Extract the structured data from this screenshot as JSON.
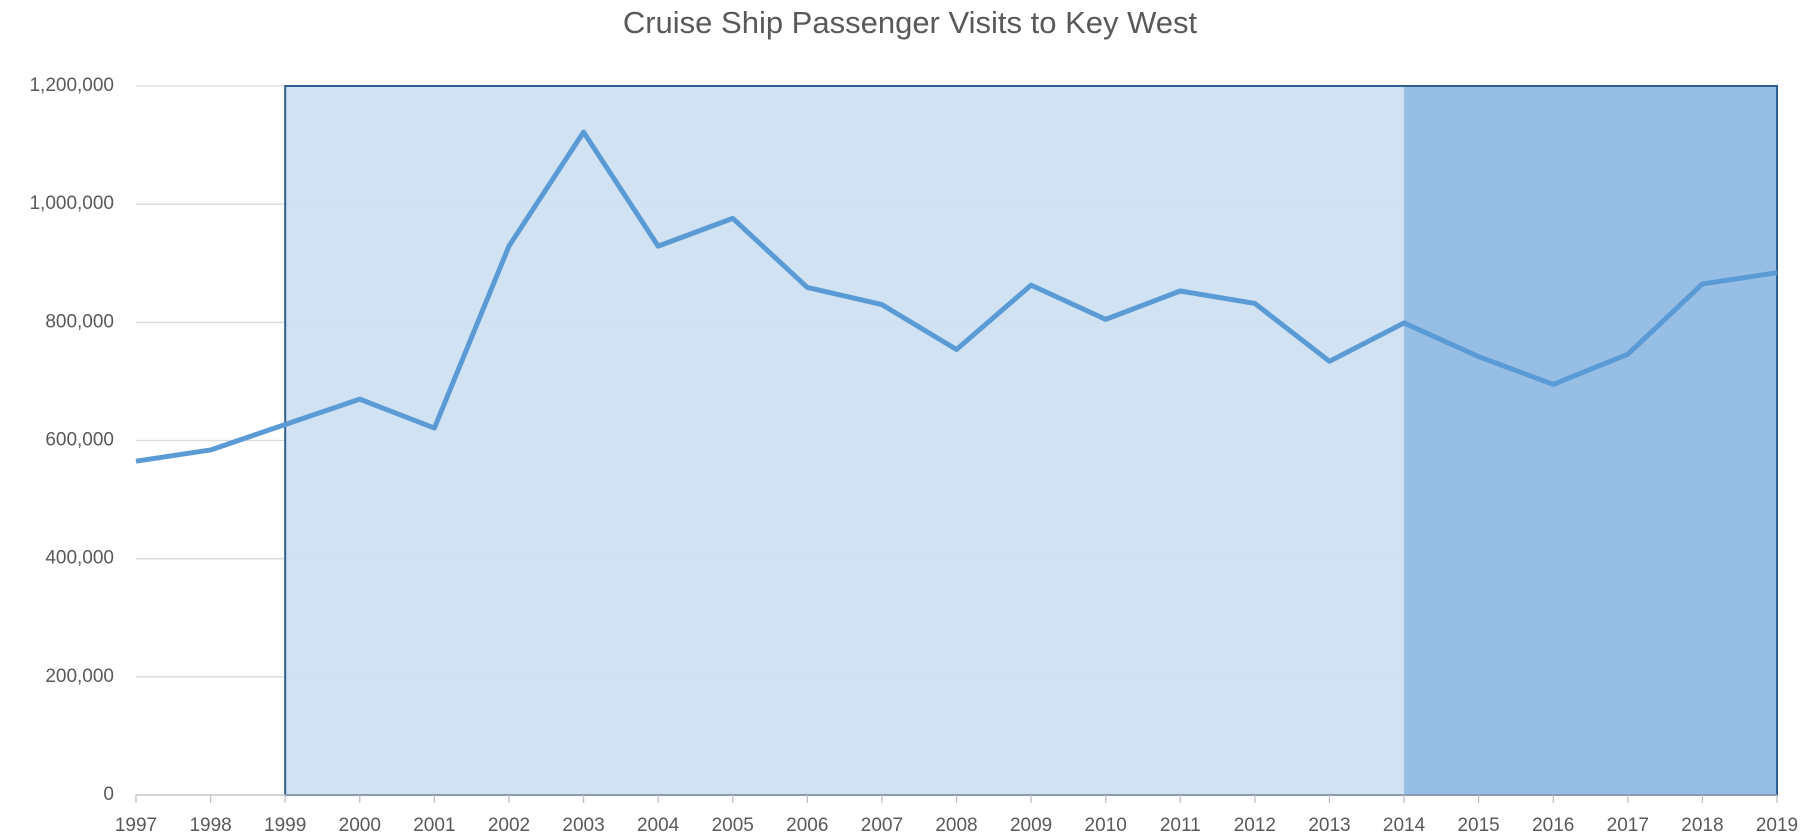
{
  "chart_data": {
    "type": "line",
    "title": "Cruise Ship Passenger Visits to Key West",
    "categories": [
      "1997",
      "1998",
      "1999",
      "2000",
      "2001",
      "2002",
      "2003",
      "2004",
      "2005",
      "2006",
      "2007",
      "2008",
      "2009",
      "2010",
      "2011",
      "2012",
      "2013",
      "2014",
      "2015",
      "2016",
      "2017",
      "2018",
      "2019"
    ],
    "series": [
      {
        "name": "Cruise Ship Passenger Visits",
        "color": "#5b9bd5",
        "values": [
          565000,
          584000,
          627000,
          670000,
          621000,
          929000,
          1122000,
          929000,
          976000,
          859000,
          830000,
          754000,
          863000,
          805000,
          853000,
          832000,
          734000,
          799000,
          742000,
          695000,
          746000,
          865000,
          884000
        ]
      }
    ],
    "ylim": [
      0,
      1200000
    ],
    "yticks": [
      0,
      {
        "value": 200000,
        "label": "200,000"
      },
      {
        "value": 400000,
        "label": "400,000"
      },
      {
        "value": 600000,
        "label": "600,000"
      },
      {
        "value": 800000,
        "label": "800,000"
      },
      {
        "value": 1000000,
        "label": "1,000,000"
      },
      {
        "value": 1200000,
        "label": "1,200,000"
      }
    ],
    "grid": true,
    "shaded_regions": [
      {
        "from": "1999",
        "to": "2019",
        "color": "#cfe0f1"
      },
      {
        "from": "2014",
        "to": "2019",
        "color": "#93bce3"
      }
    ],
    "region_border_color": "#2f5f8f"
  }
}
